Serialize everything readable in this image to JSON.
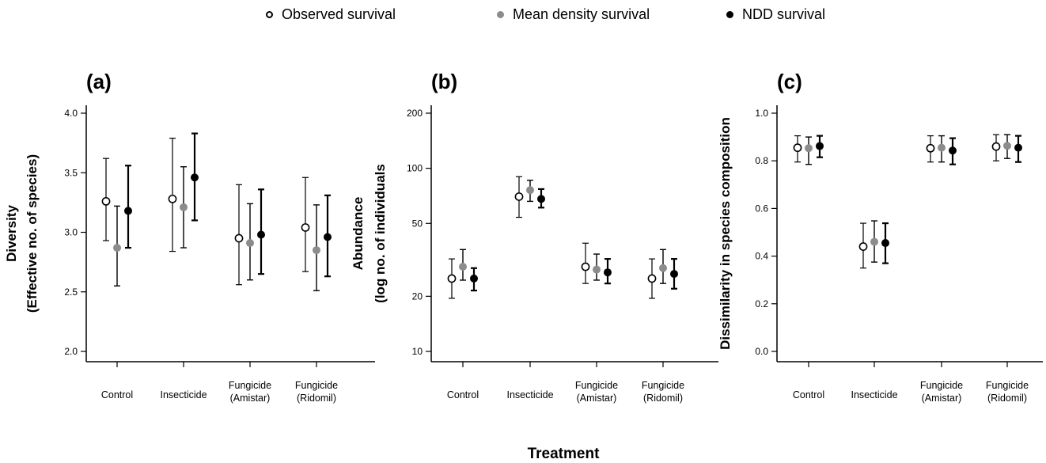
{
  "legend": {
    "observed": {
      "label": "Observed survival",
      "fill": "#ffffff",
      "stroke": "#000000"
    },
    "mean": {
      "label": "Mean density survival",
      "fill": "#8c8c8c",
      "stroke": "#8c8c8c"
    },
    "ndd": {
      "label": "NDD survival",
      "fill": "#000000",
      "stroke": "#000000"
    }
  },
  "shared_xlabel": "Treatment",
  "chart_data": [
    {
      "type": "scatter",
      "panel_label": "(a)",
      "ylabel": [
        "Diversity",
        "(Effective no. of species)"
      ],
      "ylim": [
        2.0,
        4.0
      ],
      "yscale": "linear",
      "yticks": [
        2.0,
        2.5,
        3.0,
        3.5,
        4.0
      ],
      "ytick_labels": [
        "2.0",
        "2.5",
        "3.0",
        "3.5",
        "4.0"
      ],
      "categories": [
        [
          "Control"
        ],
        [
          "Insecticide"
        ],
        [
          "Fungicide",
          "(Amistar)"
        ],
        [
          "Fungicide",
          "(Ridomil)"
        ]
      ],
      "series": [
        {
          "key": "observed",
          "values": [
            3.26,
            3.28,
            2.95,
            3.04
          ],
          "lower": [
            2.93,
            2.84,
            2.56,
            2.67
          ],
          "upper": [
            3.62,
            3.79,
            3.4,
            3.46
          ]
        },
        {
          "key": "mean",
          "values": [
            2.87,
            3.21,
            2.91,
            2.85
          ],
          "lower": [
            2.55,
            2.87,
            2.6,
            2.51
          ],
          "upper": [
            3.22,
            3.55,
            3.24,
            3.23
          ]
        },
        {
          "key": "ndd",
          "values": [
            3.18,
            3.46,
            2.98,
            2.96
          ],
          "lower": [
            2.87,
            3.1,
            2.65,
            2.63
          ],
          "upper": [
            3.56,
            3.83,
            3.36,
            3.31
          ]
        }
      ]
    },
    {
      "type": "scatter",
      "panel_label": "(b)",
      "ylabel": [
        "Abundance",
        "(log no. of individuals"
      ],
      "ylim": [
        9.3,
        215
      ],
      "yscale": "log",
      "yticks": [
        10,
        20,
        50,
        100,
        200
      ],
      "ytick_labels": [
        "10",
        "20",
        "50",
        "100",
        "200"
      ],
      "categories": [
        [
          "Control"
        ],
        [
          "Insecticide"
        ],
        [
          "Fungicide",
          "(Amistar)"
        ],
        [
          "Fungicide",
          "(Ridomil)"
        ]
      ],
      "series": [
        {
          "key": "observed",
          "values": [
            25,
            70,
            29,
            25
          ],
          "lower": [
            19.5,
            54,
            23.5,
            19.5
          ],
          "upper": [
            32,
            90,
            39,
            32
          ]
        },
        {
          "key": "mean",
          "values": [
            29,
            76,
            28,
            28.5
          ],
          "lower": [
            24.5,
            66,
            24.5,
            23.5
          ],
          "upper": [
            36,
            86,
            34,
            36
          ]
        },
        {
          "key": "ndd",
          "values": [
            25,
            68,
            27,
            26.5
          ],
          "lower": [
            21.5,
            61,
            23.5,
            22
          ],
          "upper": [
            28.5,
            77,
            32,
            32
          ]
        }
      ]
    },
    {
      "type": "scatter",
      "panel_label": "(c)",
      "ylabel": [
        "Dissimilarity in species composition"
      ],
      "ylim": [
        0.0,
        1.0
      ],
      "yscale": "linear",
      "yticks": [
        0.0,
        0.2,
        0.4,
        0.6,
        0.8,
        1.0
      ],
      "ytick_labels": [
        "0.0",
        "0.2",
        "0.4",
        "0.6",
        "0.8",
        "1.0"
      ],
      "categories": [
        [
          "Control"
        ],
        [
          "Insecticide"
        ],
        [
          "Fungicide",
          "(Amistar)"
        ],
        [
          "Fungicide",
          "(Ridomil)"
        ]
      ],
      "series": [
        {
          "key": "observed",
          "values": [
            0.855,
            0.44,
            0.853,
            0.86
          ],
          "lower": [
            0.795,
            0.35,
            0.795,
            0.8
          ],
          "upper": [
            0.905,
            0.538,
            0.905,
            0.91
          ]
        },
        {
          "key": "mean",
          "values": [
            0.853,
            0.46,
            0.855,
            0.863
          ],
          "lower": [
            0.785,
            0.375,
            0.795,
            0.81
          ],
          "upper": [
            0.9,
            0.548,
            0.905,
            0.91
          ]
        },
        {
          "key": "ndd",
          "values": [
            0.862,
            0.455,
            0.843,
            0.855
          ],
          "lower": [
            0.815,
            0.37,
            0.785,
            0.795
          ],
          "upper": [
            0.905,
            0.538,
            0.895,
            0.905
          ]
        }
      ]
    }
  ]
}
